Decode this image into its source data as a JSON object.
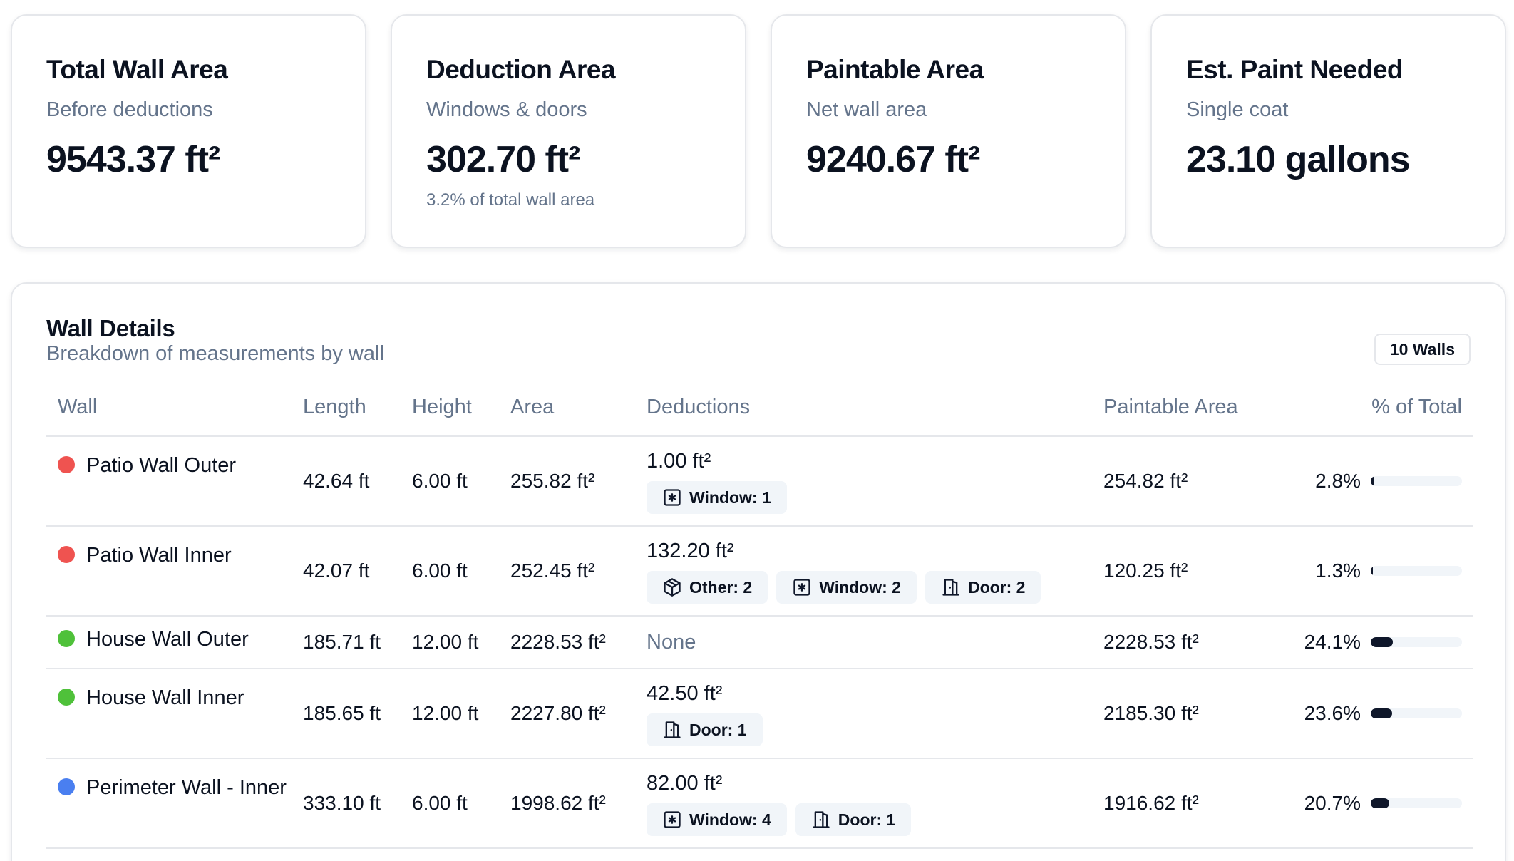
{
  "cards": [
    {
      "title": "Total Wall Area",
      "subtitle": "Before deductions",
      "value": "9543.37 ft²",
      "note": ""
    },
    {
      "title": "Deduction Area",
      "subtitle": "Windows & doors",
      "value": "302.70 ft²",
      "note": "3.2% of total wall area"
    },
    {
      "title": "Paintable Area",
      "subtitle": "Net wall area",
      "value": "9240.67 ft²",
      "note": ""
    },
    {
      "title": "Est. Paint Needed",
      "subtitle": "Single coat",
      "value": "23.10 gallons",
      "note": ""
    }
  ],
  "details": {
    "title": "Wall Details",
    "subtitle": "Breakdown of measurements by wall",
    "count_badge": "10 Walls",
    "columns": {
      "wall": "Wall",
      "length": "Length",
      "height": "Height",
      "area": "Area",
      "deductions": "Deductions",
      "paintable": "Paintable Area",
      "pct": "% of Total"
    },
    "rows": [
      {
        "name": "Patio Wall Outer",
        "color": "#ef5350",
        "length": "42.64 ft",
        "height": "6.00 ft",
        "area": "255.82 ft²",
        "deduction_total": "1.00 ft²",
        "badges": [
          {
            "icon": "window-icon",
            "label": "Window: 1"
          }
        ],
        "paintable": "254.82 ft²",
        "pct": "2.8%",
        "pct_value": 2.8
      },
      {
        "name": "Patio Wall Inner",
        "color": "#ef5350",
        "length": "42.07 ft",
        "height": "6.00 ft",
        "area": "252.45 ft²",
        "deduction_total": "132.20 ft²",
        "badges": [
          {
            "icon": "box-icon",
            "label": "Other: 2"
          },
          {
            "icon": "window-icon",
            "label": "Window: 2"
          },
          {
            "icon": "door-icon",
            "label": "Door: 2"
          }
        ],
        "paintable": "120.25 ft²",
        "pct": "1.3%",
        "pct_value": 1.3
      },
      {
        "name": "House Wall Outer",
        "color": "#4fc13a",
        "length": "185.71 ft",
        "height": "12.00 ft",
        "area": "2228.53 ft²",
        "deduction_total": "",
        "deduction_none": "None",
        "badges": [],
        "paintable": "2228.53 ft²",
        "pct": "24.1%",
        "pct_value": 24.1
      },
      {
        "name": "House Wall Inner",
        "color": "#4fc13a",
        "length": "185.65 ft",
        "height": "12.00 ft",
        "area": "2227.80 ft²",
        "deduction_total": "42.50 ft²",
        "badges": [
          {
            "icon": "door-icon",
            "label": "Door: 1"
          }
        ],
        "paintable": "2185.30 ft²",
        "pct": "23.6%",
        "pct_value": 23.6
      },
      {
        "name": "Perimeter Wall - Inner",
        "color": "#4a7ff0",
        "length": "333.10 ft",
        "height": "6.00 ft",
        "area": "1998.62 ft²",
        "deduction_total": "82.00 ft²",
        "badges": [
          {
            "icon": "window-icon",
            "label": "Window: 4"
          },
          {
            "icon": "door-icon",
            "label": "Door: 1"
          }
        ],
        "paintable": "1916.62 ft²",
        "pct": "20.7%",
        "pct_value": 20.7
      }
    ]
  }
}
